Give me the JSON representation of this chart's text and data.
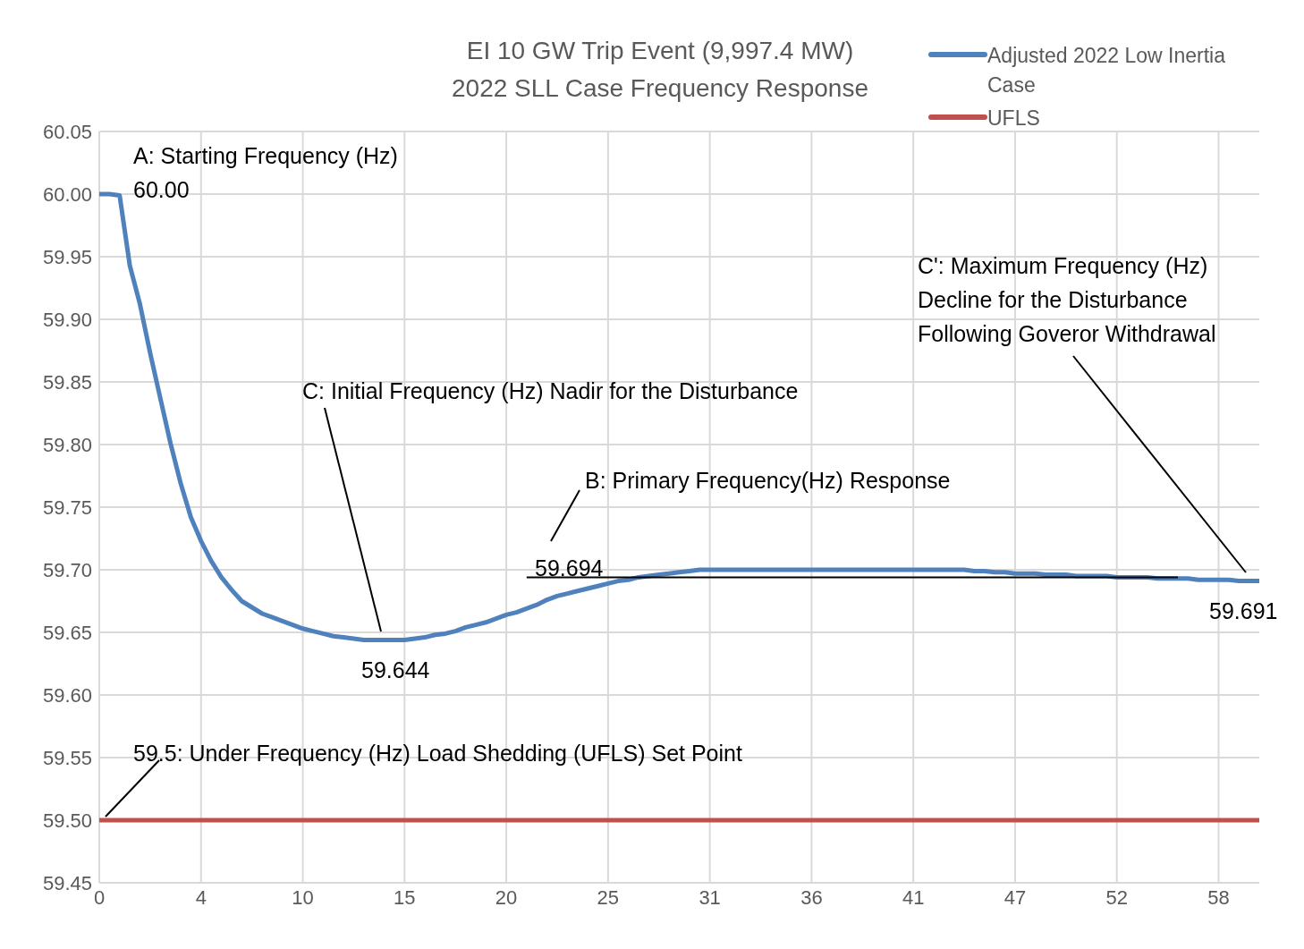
{
  "chart_data": {
    "type": "line",
    "title": "EI 10 GW Trip Event (9,997.4 MW)",
    "subtitle": "2022 SLL Case Frequency Response",
    "categories": [
      "0",
      null,
      null,
      null,
      null,
      null,
      null,
      null,
      null,
      null,
      "4",
      null,
      null,
      null,
      null,
      null,
      null,
      null,
      null,
      null,
      "10",
      null,
      null,
      null,
      null,
      null,
      null,
      null,
      null,
      null,
      "15",
      null,
      null,
      null,
      null,
      null,
      null,
      null,
      null,
      null,
      "20",
      null,
      null,
      null,
      null,
      null,
      null,
      null,
      null,
      null,
      "25",
      null,
      null,
      null,
      null,
      null,
      null,
      null,
      null,
      null,
      "31",
      null,
      null,
      null,
      null,
      null,
      null,
      null,
      null,
      null,
      "36",
      null,
      null,
      null,
      null,
      null,
      null,
      null,
      null,
      null,
      "41",
      null,
      null,
      null,
      null,
      null,
      null,
      null,
      null,
      null,
      "47",
      null,
      null,
      null,
      null,
      null,
      null,
      null,
      null,
      null,
      "52",
      null,
      null,
      null,
      null,
      null,
      null,
      null,
      null,
      null,
      "58",
      null,
      null,
      null,
      null
    ],
    "series": [
      {
        "name": "Adjusted 2022 Low Inertia Case",
        "color": "#4f81bd",
        "values": [
          60.0,
          60.0,
          59.999,
          59.943,
          59.912,
          59.873,
          59.837,
          59.801,
          59.769,
          59.742,
          59.723,
          59.707,
          59.694,
          59.684,
          59.675,
          59.67,
          59.665,
          59.662,
          59.659,
          59.656,
          59.653,
          59.651,
          59.649,
          59.647,
          59.646,
          59.645,
          59.644,
          59.644,
          59.644,
          59.644,
          59.644,
          59.645,
          59.646,
          59.648,
          59.649,
          59.651,
          59.654,
          59.656,
          59.658,
          59.661,
          59.664,
          59.666,
          59.669,
          59.672,
          59.676,
          59.679,
          59.681,
          59.683,
          59.685,
          59.687,
          59.689,
          59.691,
          59.692,
          59.694,
          59.695,
          59.696,
          59.697,
          59.698,
          59.699,
          59.7,
          59.7,
          59.7,
          59.7,
          59.7,
          59.7,
          59.7,
          59.7,
          59.7,
          59.7,
          59.7,
          59.7,
          59.7,
          59.7,
          59.7,
          59.7,
          59.7,
          59.7,
          59.7,
          59.7,
          59.7,
          59.7,
          59.7,
          59.7,
          59.7,
          59.7,
          59.7,
          59.699,
          59.699,
          59.698,
          59.698,
          59.697,
          59.697,
          59.697,
          59.696,
          59.696,
          59.696,
          59.695,
          59.695,
          59.695,
          59.695,
          59.694,
          59.694,
          59.694,
          59.694,
          59.693,
          59.693,
          59.693,
          59.693,
          59.692,
          59.692,
          59.692,
          59.692,
          59.691,
          59.691,
          59.691
        ]
      },
      {
        "name": "UFLS",
        "color": "#c0504d",
        "values": [
          59.5,
          59.5,
          59.5,
          59.5,
          59.5,
          59.5,
          59.5,
          59.5,
          59.5,
          59.5,
          59.5,
          59.5,
          59.5,
          59.5,
          59.5,
          59.5,
          59.5,
          59.5,
          59.5,
          59.5,
          59.5,
          59.5,
          59.5,
          59.5,
          59.5,
          59.5,
          59.5,
          59.5,
          59.5,
          59.5,
          59.5,
          59.5,
          59.5,
          59.5,
          59.5,
          59.5,
          59.5,
          59.5,
          59.5,
          59.5,
          59.5,
          59.5,
          59.5,
          59.5,
          59.5,
          59.5,
          59.5,
          59.5,
          59.5,
          59.5,
          59.5,
          59.5,
          59.5,
          59.5,
          59.5,
          59.5,
          59.5,
          59.5,
          59.5,
          59.5,
          59.5,
          59.5,
          59.5,
          59.5,
          59.5,
          59.5,
          59.5,
          59.5,
          59.5,
          59.5,
          59.5,
          59.5,
          59.5,
          59.5,
          59.5,
          59.5,
          59.5,
          59.5,
          59.5,
          59.5,
          59.5,
          59.5,
          59.5,
          59.5,
          59.5,
          59.5,
          59.5,
          59.5,
          59.5,
          59.5,
          59.5,
          59.5,
          59.5,
          59.5,
          59.5,
          59.5,
          59.5,
          59.5,
          59.5,
          59.5,
          59.5,
          59.5,
          59.5,
          59.5,
          59.5,
          59.5,
          59.5,
          59.5,
          59.5,
          59.5,
          59.5,
          59.5,
          59.5,
          59.5,
          59.5
        ]
      },
      {
        "type": "line",
        "color": "#000000",
        "values": [
          null,
          null,
          null,
          null,
          null,
          null,
          null,
          null,
          null,
          null,
          null,
          null,
          null,
          null,
          null,
          null,
          null,
          null,
          null,
          null,
          null,
          null,
          null,
          null,
          null,
          null,
          null,
          null,
          null,
          null,
          null,
          null,
          null,
          null,
          null,
          null,
          null,
          null,
          null,
          null,
          null,
          null,
          59.694,
          59.694,
          59.694,
          59.694,
          59.694,
          59.694,
          59.694,
          59.694,
          59.694,
          59.694,
          59.694,
          59.694,
          59.694,
          59.694,
          59.694,
          59.694,
          59.694,
          59.694,
          59.694,
          59.694,
          59.694,
          59.694,
          59.694,
          59.694,
          59.694,
          59.694,
          59.694,
          59.694,
          59.694,
          59.694,
          59.694,
          59.694,
          59.694,
          59.694,
          59.694,
          59.694,
          59.694,
          59.694,
          59.694,
          59.694,
          59.694,
          59.694,
          59.694,
          59.694,
          59.694,
          59.694,
          59.694,
          59.694,
          59.694,
          59.694,
          59.694,
          59.694,
          59.694,
          59.694,
          59.694,
          59.694,
          59.694,
          59.694,
          59.694,
          59.694,
          59.694,
          59.694,
          59.694,
          59.694,
          59.694,
          null,
          null,
          null,
          null,
          null,
          null,
          null,
          null
        ]
      }
    ],
    "ylim": [
      59.45,
      60.05
    ],
    "yticks": [
      59.45,
      {
        "value": 59.5,
        "label": "59.50"
      },
      59.55,
      {
        "value": 59.6,
        "label": "59.60"
      },
      59.65,
      {
        "value": 59.7,
        "label": "59.70"
      },
      59.75,
      {
        "value": 59.8,
        "label": "59.80"
      },
      59.85,
      {
        "value": 59.9,
        "label": "59.90"
      },
      59.95,
      {
        "value": 60,
        "label": "60.00"
      },
      60.05
    ],
    "grid": true,
    "legend": "top right",
    "marker": "none",
    "line_style": "solid",
    "annotations": [
      "A: Starting Frequency (Hz)",
      {
        "text": "60.00",
        "x": "0",
        "y": 60
      },
      "C: Initial Frequency (Hz) Nadir for the Disturbance",
      {
        "text": "59.644",
        "y": 59.644
      },
      "B: Primary Frequency(Hz) Response",
      {
        "text": "59.694",
        "y": 59.694
      },
      "C': Maximum Frequency (Hz)",
      "Decline for the Disturbance",
      "Following Goveror Withdrawal",
      {
        "text": "59.691",
        "y": 59.691
      },
      {
        "text": "59.5: Under Frequency (Hz) Load Shedding (UFLS) Set Point",
        "y": 59.5
      }
    ]
  }
}
